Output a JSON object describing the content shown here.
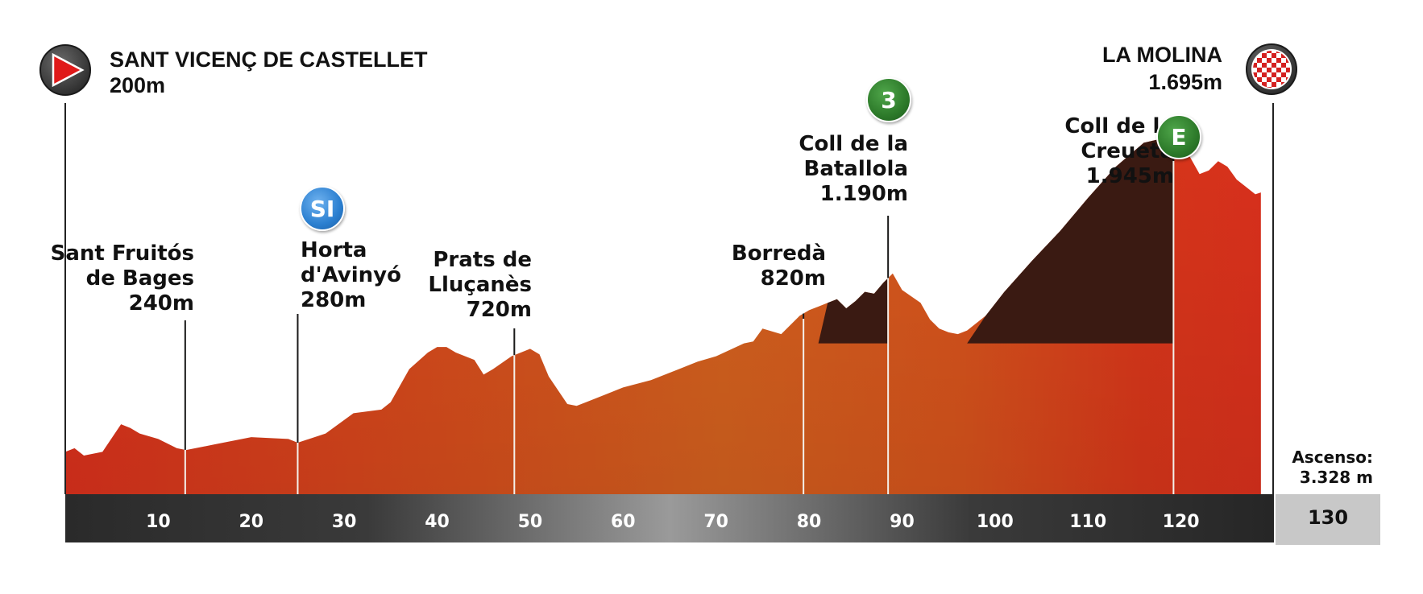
{
  "chart_data": {
    "type": "area",
    "title": "",
    "xlabel": "",
    "ylabel": "",
    "xlim": [
      0,
      130
    ],
    "ylim": [
      0,
      2100
    ],
    "x_ticks": [
      10,
      20,
      30,
      40,
      50,
      60,
      70,
      80,
      90,
      100,
      110,
      120
    ],
    "total_distance_label": "130",
    "ascent": {
      "label": "Ascenso:",
      "value": "3.328 m"
    },
    "start": {
      "name": "SANT VICENÇ DE CASTELLET",
      "altitude": "200m"
    },
    "finish": {
      "name": "LA MOLINA",
      "altitude": "1.695m"
    },
    "profile": {
      "x": [
        0,
        1,
        2,
        4,
        6,
        7,
        8,
        10,
        12,
        13,
        16,
        20,
        24,
        25,
        28,
        31,
        34,
        35,
        37,
        39,
        40,
        41,
        42,
        44,
        45,
        46,
        48,
        49,
        50,
        51,
        52,
        54,
        55,
        56,
        58,
        60,
        63,
        66,
        68,
        70,
        73,
        74,
        75,
        77,
        79,
        80,
        82,
        83,
        84,
        85,
        86,
        87,
        88,
        89,
        90,
        92,
        93,
        94,
        95,
        96,
        97,
        99,
        101,
        104,
        107,
        110,
        113,
        116,
        119,
        120,
        121,
        122,
        123,
        124,
        125,
        126,
        127,
        128,
        128.6
      ],
      "y": [
        230,
        250,
        210,
        230,
        380,
        360,
        330,
        300,
        250,
        240,
        270,
        310,
        300,
        280,
        330,
        440,
        460,
        500,
        680,
        770,
        800,
        800,
        770,
        730,
        650,
        680,
        750,
        770,
        790,
        760,
        640,
        490,
        480,
        500,
        540,
        580,
        620,
        680,
        720,
        750,
        820,
        830,
        900,
        870,
        970,
        1000,
        1040,
        1060,
        1010,
        1050,
        1100,
        1090,
        1150,
        1200,
        1110,
        1040,
        950,
        900,
        880,
        870,
        890,
        970,
        1100,
        1270,
        1430,
        1610,
        1780,
        1910,
        1945,
        1920,
        1830,
        1740,
        1760,
        1810,
        1780,
        1710,
        1670,
        1630,
        1640
      ]
    },
    "climbs": [
      {
        "name": "Coll de la Batallola",
        "category": "3",
        "x_start": 81,
        "x_end": 88.5,
        "base": 820,
        "summit": 1190
      },
      {
        "name": "Coll de la Creueta",
        "category": "E",
        "x_start": 97,
        "x_end": 119.2,
        "base": 820,
        "summit": 1945
      }
    ],
    "annotations": [
      {
        "km": 12.9,
        "text": [
          "Sant Fruitós",
          "de Bages",
          "240m"
        ]
      },
      {
        "km": 25,
        "text": [
          "Horta",
          "d'Avinyó",
          "280m"
        ],
        "badge": "SI"
      },
      {
        "km": 48.3,
        "text": [
          "Prats de",
          "Lluçanès",
          "720m"
        ]
      },
      {
        "km": 79.4,
        "text": [
          "Borredà",
          "820m"
        ]
      },
      {
        "km": 88.5,
        "text": [
          "Coll de la",
          "Batallola",
          "1.190m"
        ],
        "badge": "3"
      },
      {
        "km": 119.2,
        "text": [
          "Coll de la",
          "Creueta",
          "1.945m"
        ],
        "badge": "E"
      }
    ],
    "colors": {
      "profile_low": "#d8301c",
      "profile_mid": "#d2581c",
      "climb": "#3a1a12",
      "axis_dark": "#2a2a2a",
      "axis_light": "#9a9a9a",
      "total_box": "#c8c8c8",
      "mountain_badge": "#2d7a2a",
      "sprint_badge": "#2b7fd0",
      "start_badge": "#d91a1a"
    }
  }
}
